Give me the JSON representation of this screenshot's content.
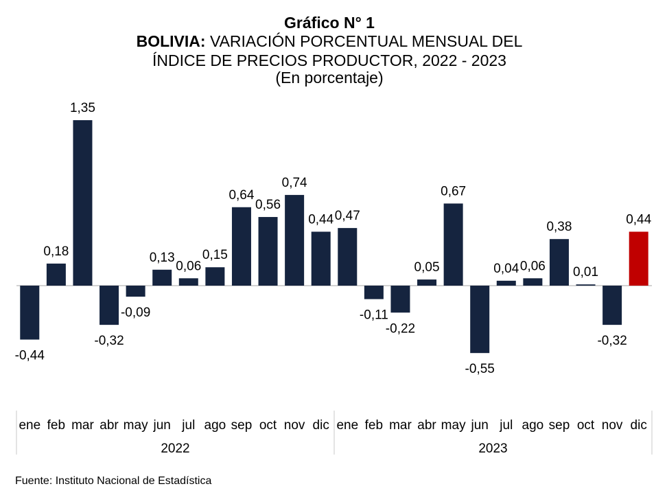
{
  "chart_data": {
    "type": "bar",
    "title": "Gráfico N° 1",
    "subtitle_bold": "BOLIVIA:",
    "subtitle_line1": "VARIACIÓN PORCENTUAL MENSUAL DEL",
    "subtitle_line2": "ÍNDICE DE PRECIOS PRODUCTOR, 2022 - 2023",
    "unit_note": "(En porcentaje)",
    "groups": [
      {
        "year": "2022",
        "categories": [
          "ene",
          "feb",
          "mar",
          "abr",
          "may",
          "jun",
          "jul",
          "ago",
          "sep",
          "oct",
          "nov",
          "dic"
        ],
        "values": [
          -0.44,
          0.18,
          1.35,
          -0.32,
          -0.09,
          0.13,
          0.06,
          0.15,
          0.64,
          0.56,
          0.74,
          0.44
        ]
      },
      {
        "year": "2023",
        "categories": [
          "ene",
          "feb",
          "mar",
          "abr",
          "may",
          "jun",
          "jul",
          "ago",
          "sep",
          "oct",
          "nov",
          "dic"
        ],
        "values": [
          0.47,
          -0.11,
          -0.22,
          0.05,
          0.67,
          -0.55,
          0.04,
          0.06,
          0.38,
          0.01,
          -0.32,
          0.44
        ]
      }
    ],
    "highlight_bar": {
      "year": "2023",
      "month": "dic"
    },
    "data_labels": true,
    "legend": false,
    "grid": false
  },
  "colors": {
    "bar": "#15243f",
    "highlight": "#c00000",
    "axis": "#a6a6a6",
    "separator": "#c9c9c9",
    "text": "#000000"
  },
  "source": "Fuente: Instituto Nacional de Estadística"
}
